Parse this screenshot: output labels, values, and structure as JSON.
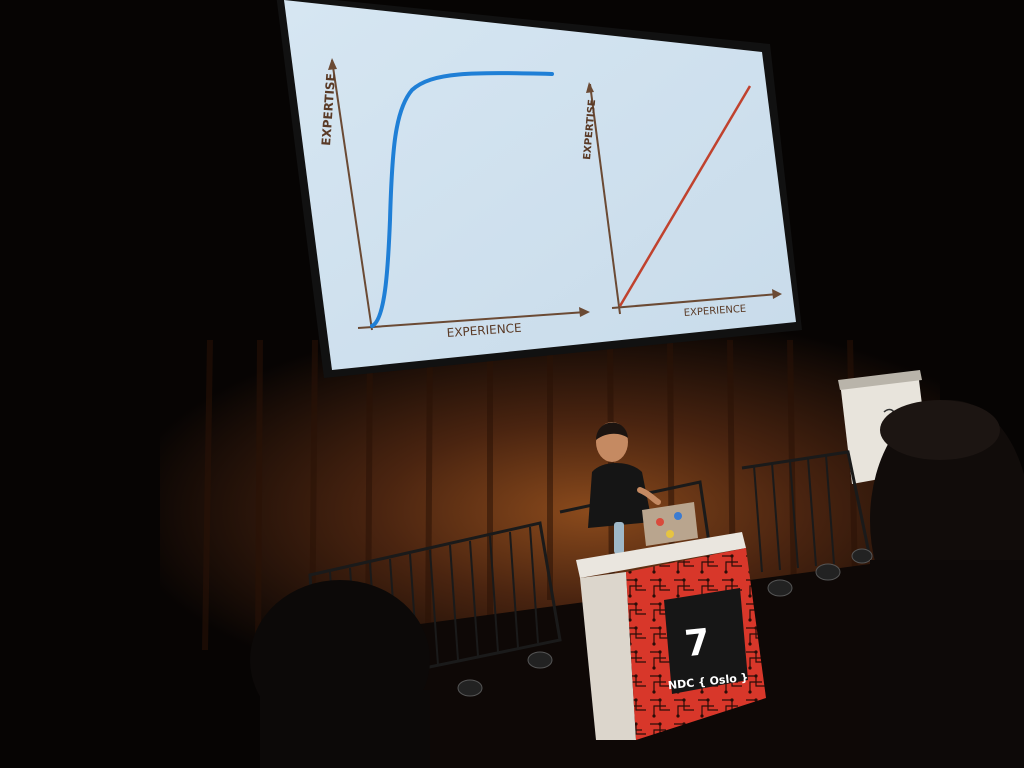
{
  "slide": {
    "left_chart": {
      "ylabel": "EXPERTISE",
      "xlabel": "EXPERIENCE",
      "curve_color": "#1f7fd6"
    },
    "right_chart": {
      "ylabel": "EXPERTISE",
      "xlabel": "EXPERIENCE",
      "curve_color": "#c0422e"
    },
    "background": "#cfe0ee",
    "axis_color": "#6b4a34"
  },
  "podium": {
    "room_number": "7",
    "event_name": "NDC { Oslo }",
    "accent": "#d8372a"
  }
}
